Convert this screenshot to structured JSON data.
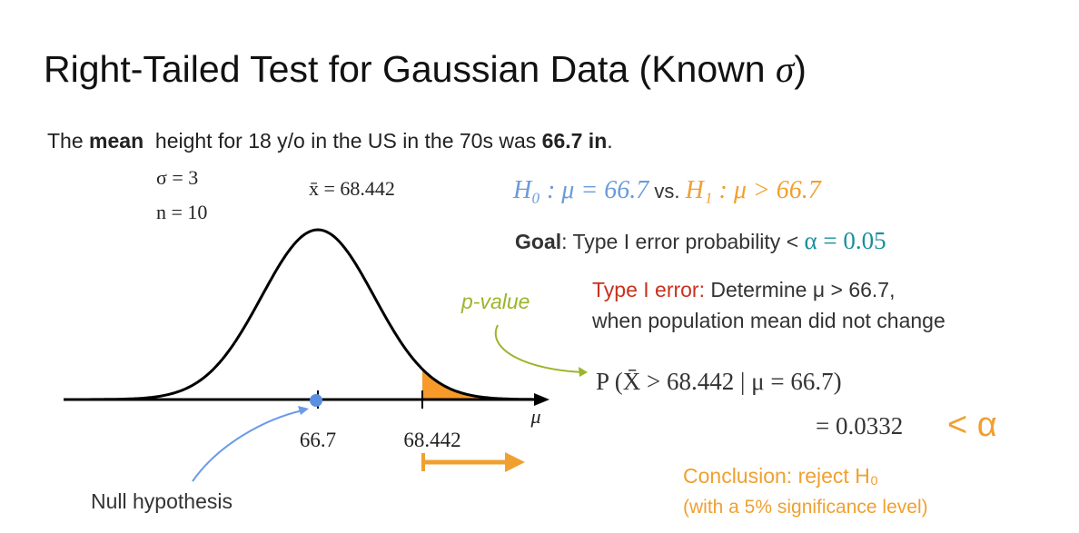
{
  "title": {
    "text": "Right-Tailed Test for Gaussian Data (Known ",
    "symbol": "σ",
    "end": ")"
  },
  "intro": {
    "start": "The ",
    "bold_word": "mean",
    "middle": "  height for 18 y/o in the US in the 70s was ",
    "bold_value": "66.7 in",
    "end": "."
  },
  "params": {
    "sigma": "σ = 3",
    "n": "n = 10",
    "xbar": "x̄ = 68.442"
  },
  "hypotheses": {
    "h0": "H₀ : μ = 66.7",
    "vs": " vs. ",
    "h1": "H₁ : μ > 66.7"
  },
  "goal": {
    "label": "Goal",
    "text": ": Type I error probability < ",
    "alpha": "α = 0.05"
  },
  "type1": {
    "label": "Type I error:",
    "text": " Determine μ > 66.7,",
    "line2": "when population mean did not change"
  },
  "pvalue_label": "p-value",
  "probability": {
    "line1": "P (X̄ > 68.442 | μ = 66.7)",
    "line2": "= 0.0332",
    "compare": "< α"
  },
  "axis_labels": {
    "mean": "66.7",
    "observed": "68.442",
    "variable": "μ"
  },
  "null_label": "Null hypothesis",
  "conclusion": {
    "line1": "Conclusion: reject H₀",
    "line2": "(with a 5% significance level)"
  }
}
